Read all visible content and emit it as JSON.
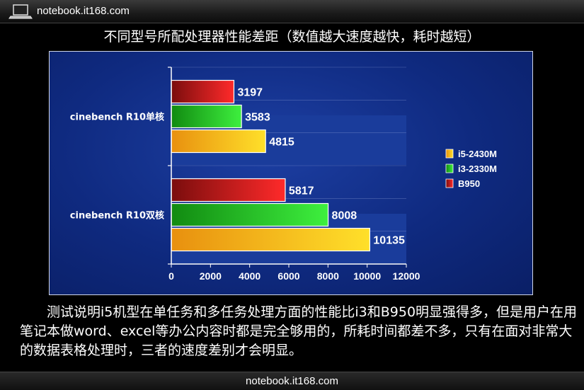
{
  "header": {
    "site": "notebook.it168.com",
    "title": "不同型号所配处理器性能差距（数值越大速度越快，耗时越短）"
  },
  "footer": {
    "site": "notebook.it168.com"
  },
  "caption": "测试说明i5机型在单任务和多任务处理方面的性能比i3和B950明显强得多，但是用户在用笔记本做word、excel等办公内容时都是完全够用的，所耗时间都差不多，只有在面对非常大的数据表格处理时，三者的速度差别才会明显。",
  "icons": [
    "laptop-icon"
  ],
  "chart_data": {
    "type": "bar",
    "orientation": "horizontal",
    "categories": [
      "cinebench R10单核",
      "cinebench R10双核"
    ],
    "series": [
      {
        "name": "B950",
        "values": [
          3197,
          5817
        ],
        "color": "#c41a1a"
      },
      {
        "name": "i3-2330M",
        "values": [
          3583,
          8008
        ],
        "color": "#1fae1f"
      },
      {
        "name": "i5-2430M",
        "values": [
          4815,
          10135
        ],
        "color": "#f2b416"
      }
    ],
    "legend_order": [
      "i5-2430M",
      "i3-2330M",
      "B950"
    ],
    "legend_position": "right",
    "xlim": [
      0,
      12000
    ],
    "xticks": [
      0,
      2000,
      4000,
      6000,
      8000,
      10000,
      12000
    ],
    "grid": true
  }
}
